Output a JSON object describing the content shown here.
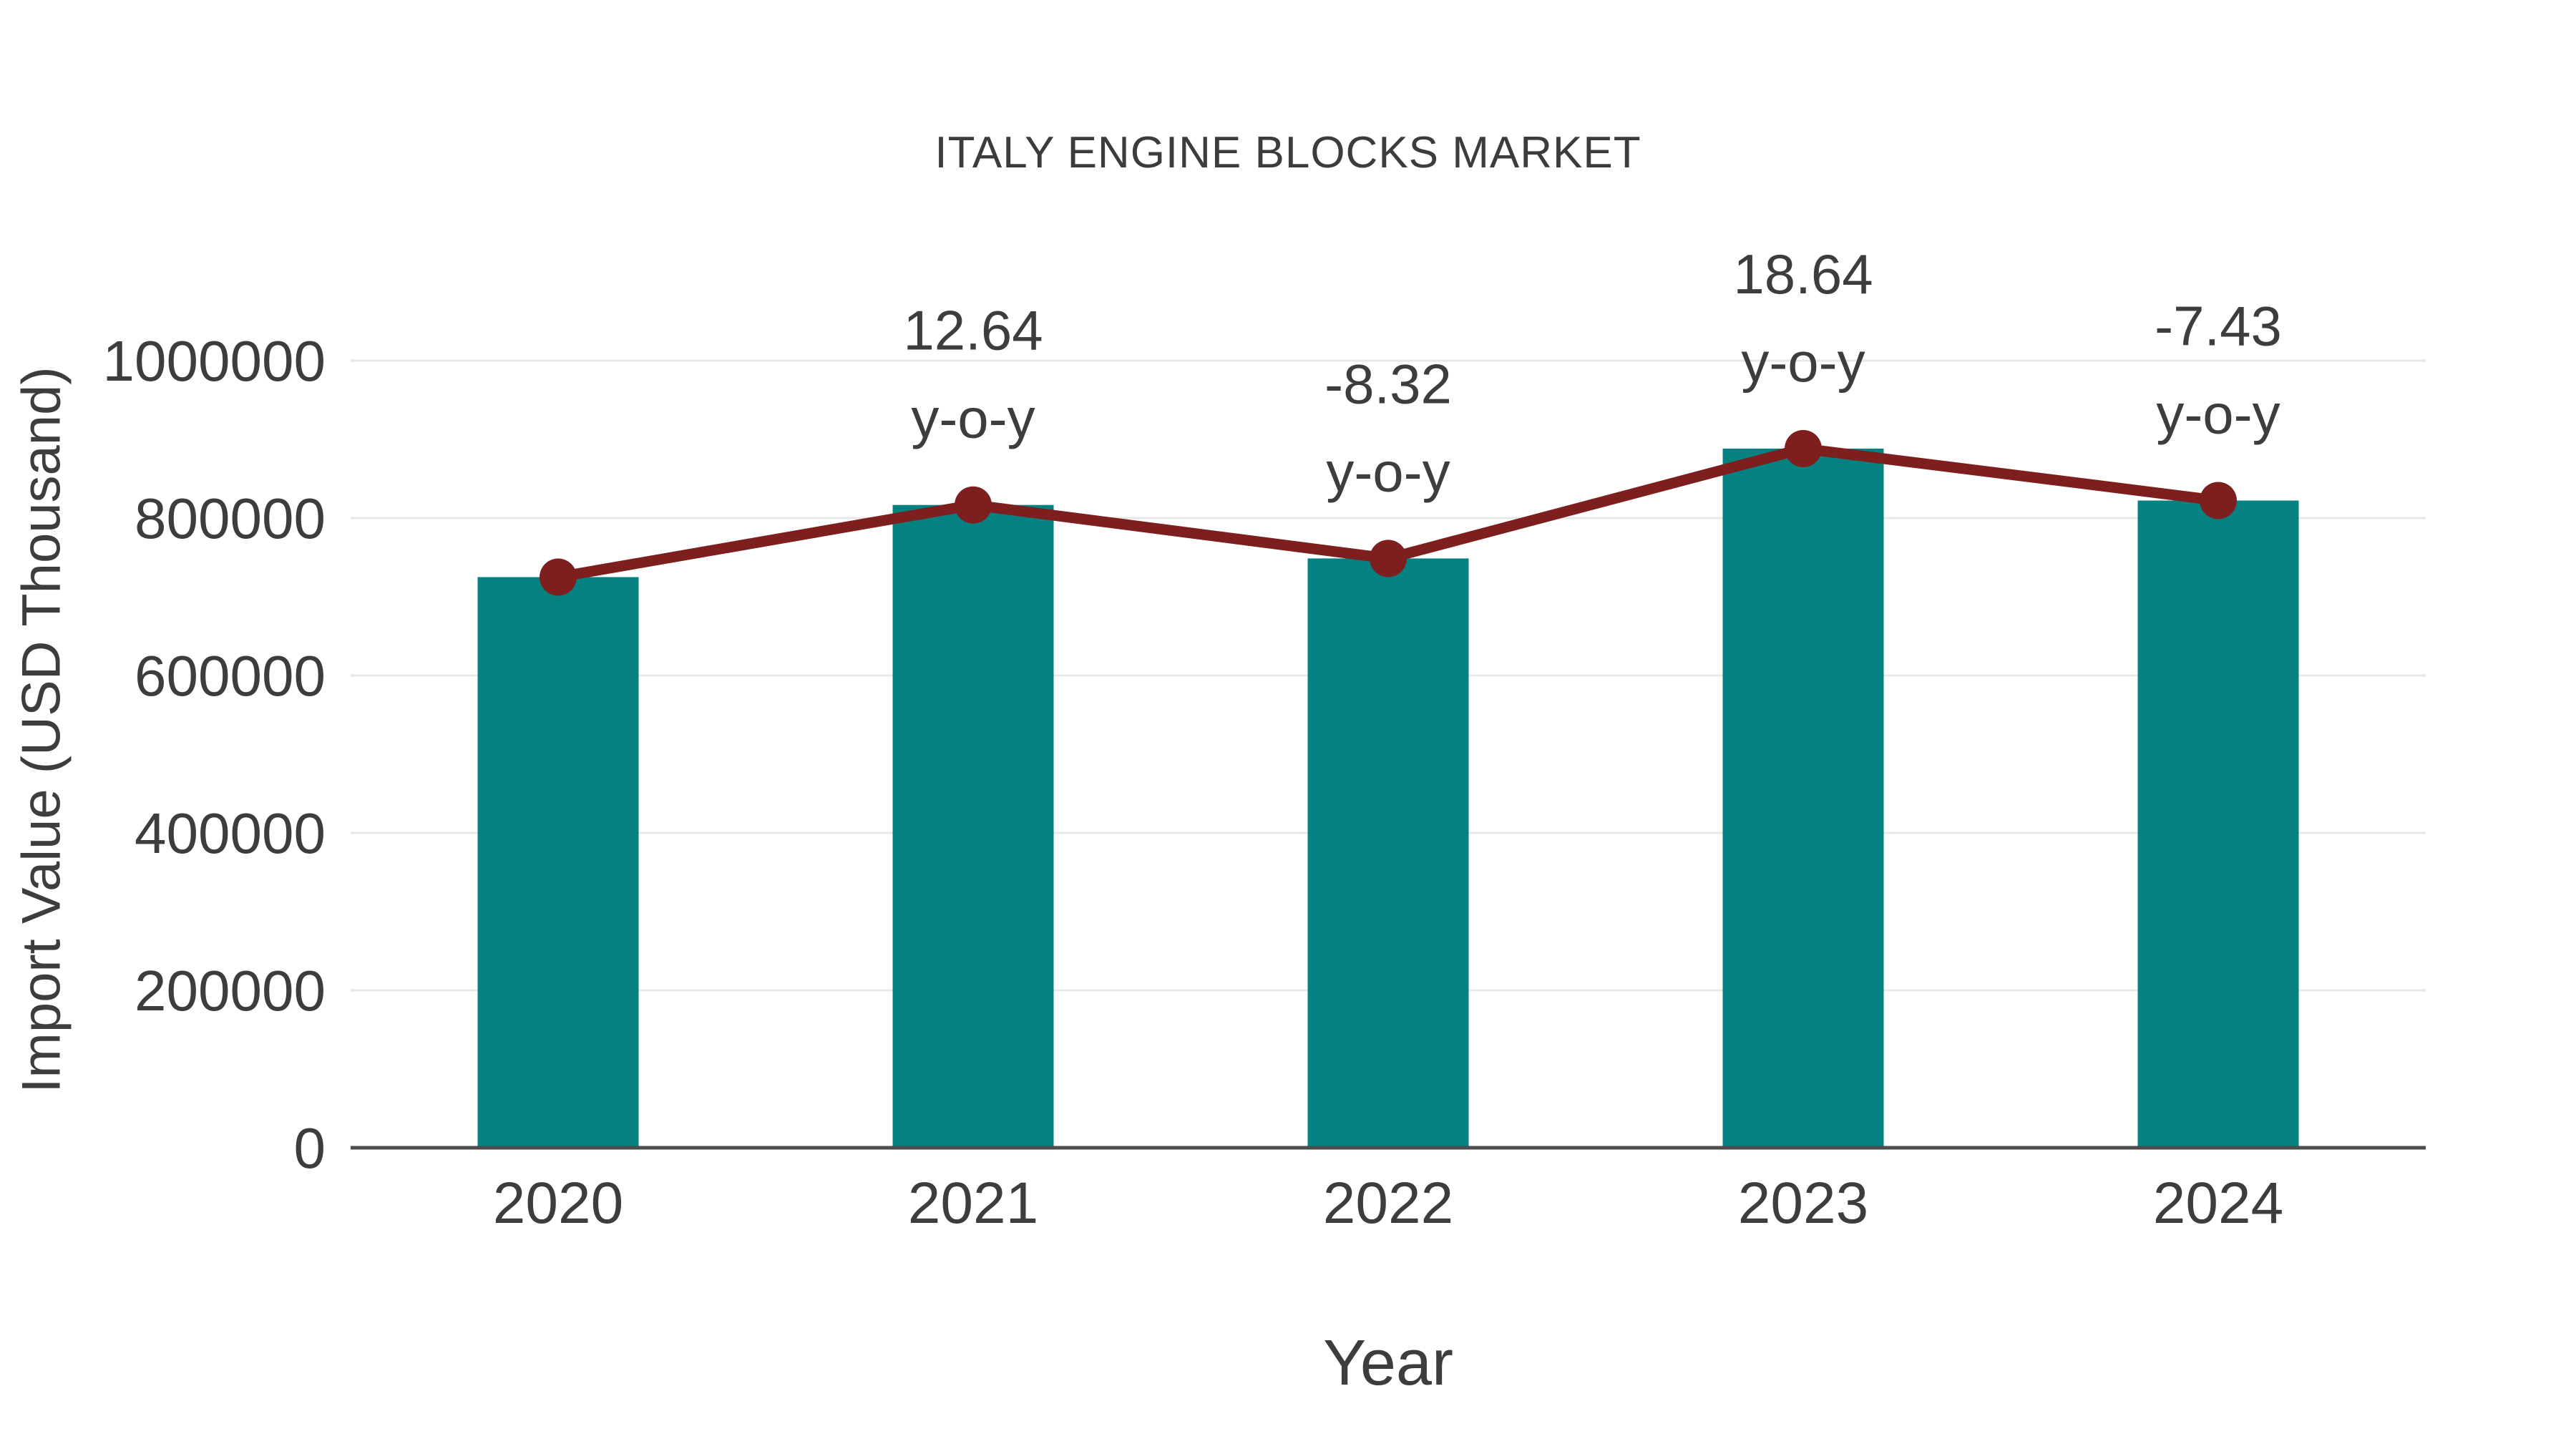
{
  "chart_data": {
    "type": "bar",
    "title": "ITALY ENGINE BLOCKS MARKET",
    "xlabel": "Year",
    "ylabel": "Import Value (USD Thousand)",
    "categories": [
      "2020",
      "2021",
      "2022",
      "2023",
      "2024"
    ],
    "series": [
      {
        "name": "Import Value bars",
        "type": "bar",
        "color": "#068181",
        "values": [
          725000,
          816640,
          748696,
          888253,
          822255
        ]
      },
      {
        "name": "Import Value trend line",
        "type": "line",
        "color": "#7e1f1f",
        "values": [
          725000,
          816640,
          748696,
          888253,
          822255
        ]
      }
    ],
    "annotations": [
      {
        "category": "2021",
        "text_lines": [
          "12.64",
          "y-o-y"
        ]
      },
      {
        "category": "2022",
        "text_lines": [
          "-8.32",
          "y-o-y"
        ]
      },
      {
        "category": "2023",
        "text_lines": [
          "18.64",
          "y-o-y"
        ]
      },
      {
        "category": "2024",
        "text_lines": [
          "-7.43",
          "y-o-y"
        ]
      }
    ],
    "yticks": [
      0,
      200000,
      400000,
      600000,
      800000,
      1000000
    ],
    "ylim": [
      0,
      1100000
    ],
    "grid": true,
    "legend": false,
    "colors": {
      "bar": "#068181",
      "line": "#7e1f1f",
      "grid": "#e7e7e7",
      "axis": "#4d4d4d",
      "text": "#3d3d3d"
    }
  }
}
